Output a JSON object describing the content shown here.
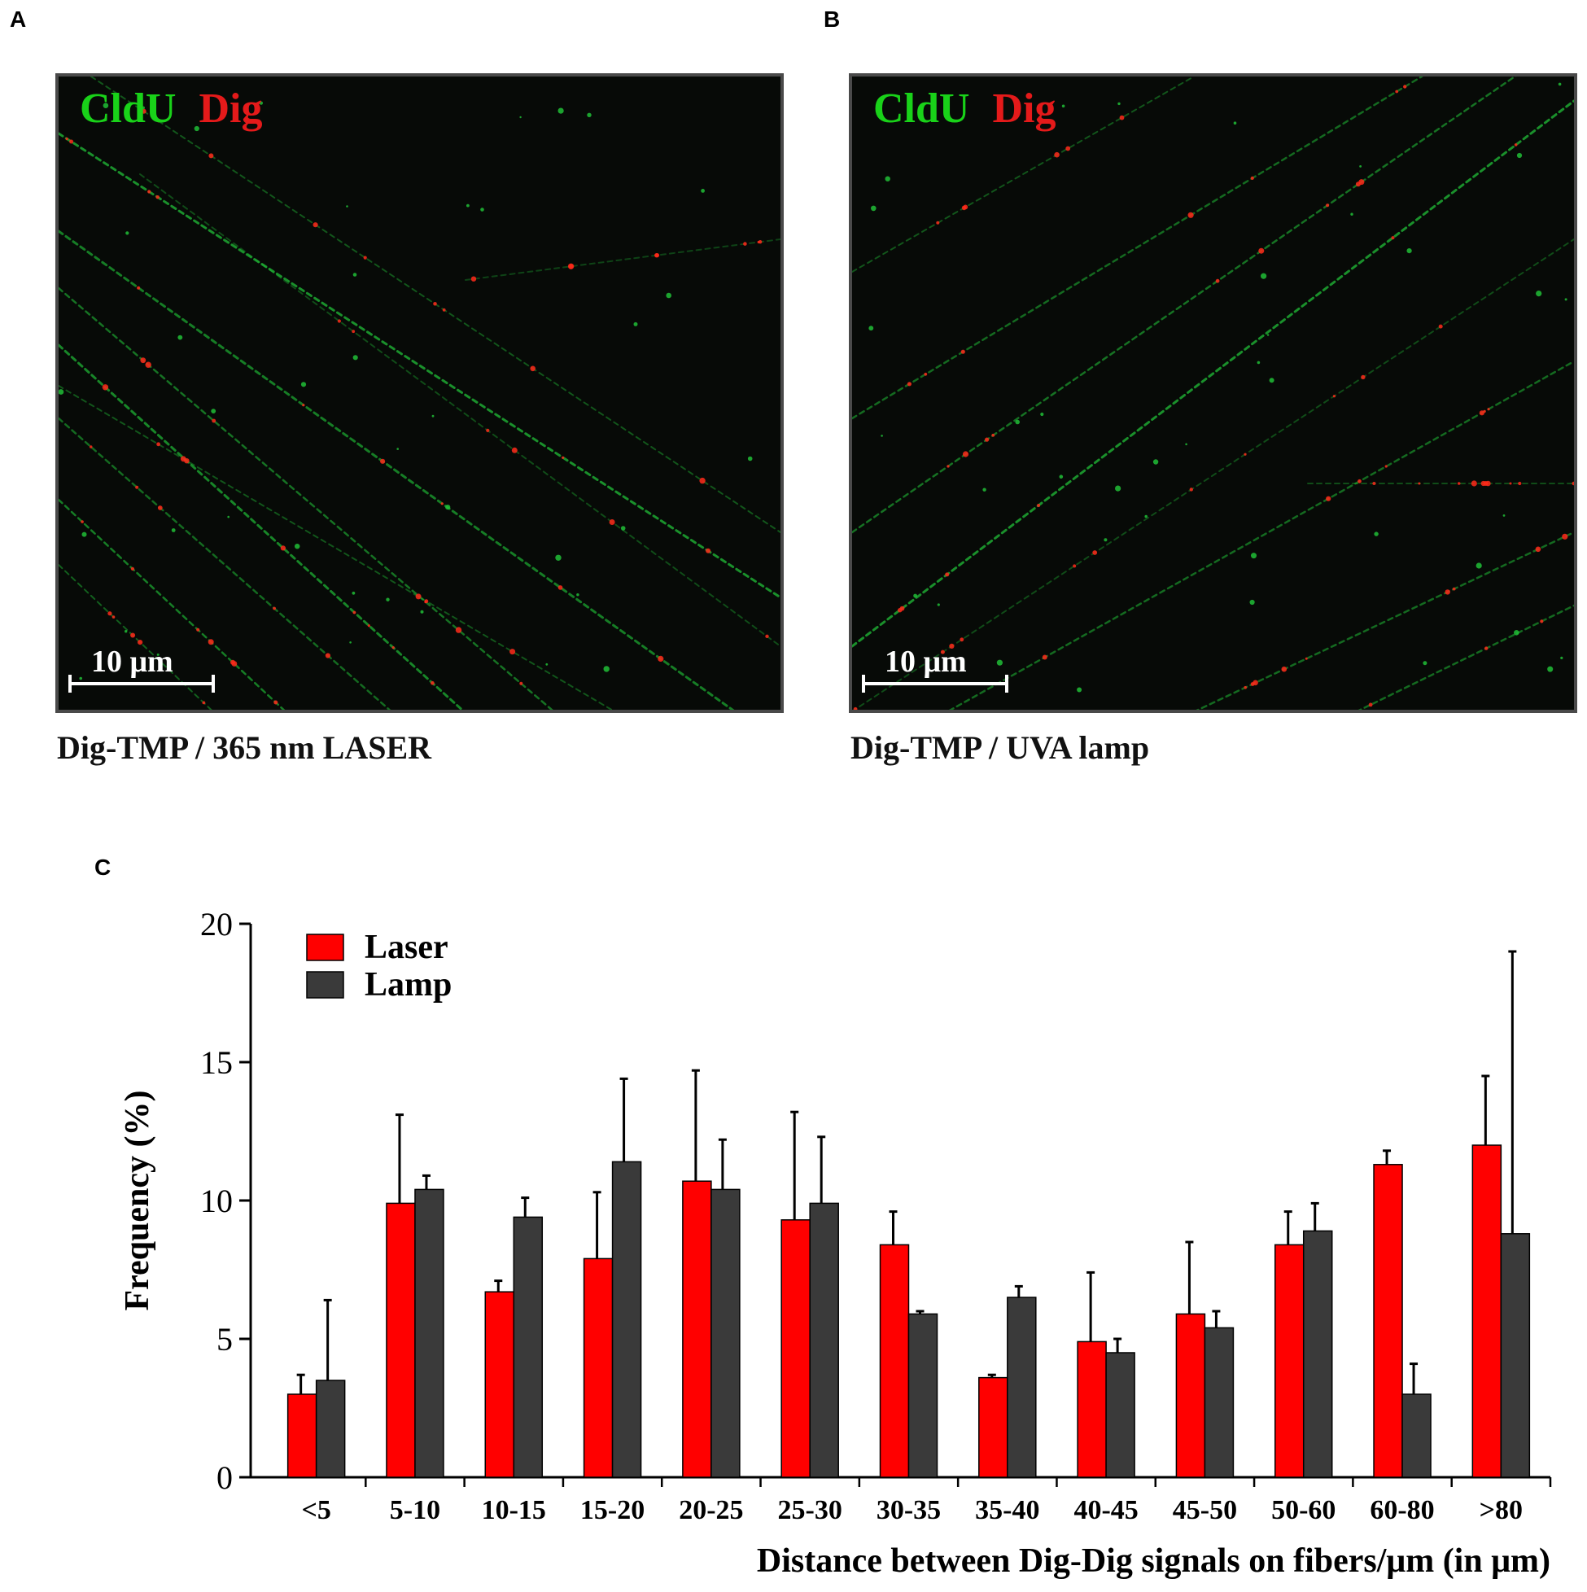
{
  "panels": {
    "A": {
      "letter": "A",
      "stain_green": "CldU",
      "stain_red": "Dig",
      "scalebar": "10 μm",
      "caption": "Dig-TMP / 365 nm LASER"
    },
    "B": {
      "letter": "B",
      "stain_green": "CldU",
      "stain_red": "Dig",
      "scalebar": "10 μm",
      "caption": "Dig-TMP / UVA lamp"
    },
    "C": {
      "letter": "C"
    }
  },
  "colors": {
    "laser": "#ff0000",
    "lamp": "#3a3a3a",
    "fiber_green": "#22c93a",
    "dig_red": "#ff2a1a"
  },
  "chart_data": {
    "type": "bar",
    "categories": [
      "<5",
      "5-10",
      "10-15",
      "15-20",
      "20-25",
      "25-30",
      "30-35",
      "35-40",
      "40-45",
      "45-50",
      "50-60",
      "60-80",
      ">80"
    ],
    "series": [
      {
        "name": "Laser",
        "values": [
          3.0,
          9.9,
          6.7,
          7.9,
          10.7,
          9.3,
          8.4,
          3.6,
          4.9,
          5.9,
          8.4,
          11.3,
          12.0
        ],
        "error": [
          0.7,
          3.2,
          0.4,
          2.4,
          4.0,
          3.9,
          1.2,
          0.1,
          2.5,
          2.6,
          1.2,
          0.5,
          2.5
        ]
      },
      {
        "name": "Lamp",
        "values": [
          3.5,
          10.4,
          9.4,
          11.4,
          10.4,
          9.9,
          5.9,
          6.5,
          4.5,
          5.4,
          8.9,
          3.0,
          8.8
        ],
        "error": [
          2.9,
          0.5,
          0.7,
          3.0,
          1.8,
          2.4,
          0.1,
          0.4,
          0.5,
          0.6,
          1.0,
          1.1,
          10.2
        ]
      }
    ],
    "title": "",
    "xlabel": "Distance between Dig-Dig signals on fibers/μm (in μm)",
    "ylabel": "Frequency (%)",
    "ylim": [
      0,
      20
    ],
    "yticks": [
      "0",
      "5",
      "10",
      "15",
      "20"
    ],
    "grid": false,
    "legend_position": "top-left"
  }
}
